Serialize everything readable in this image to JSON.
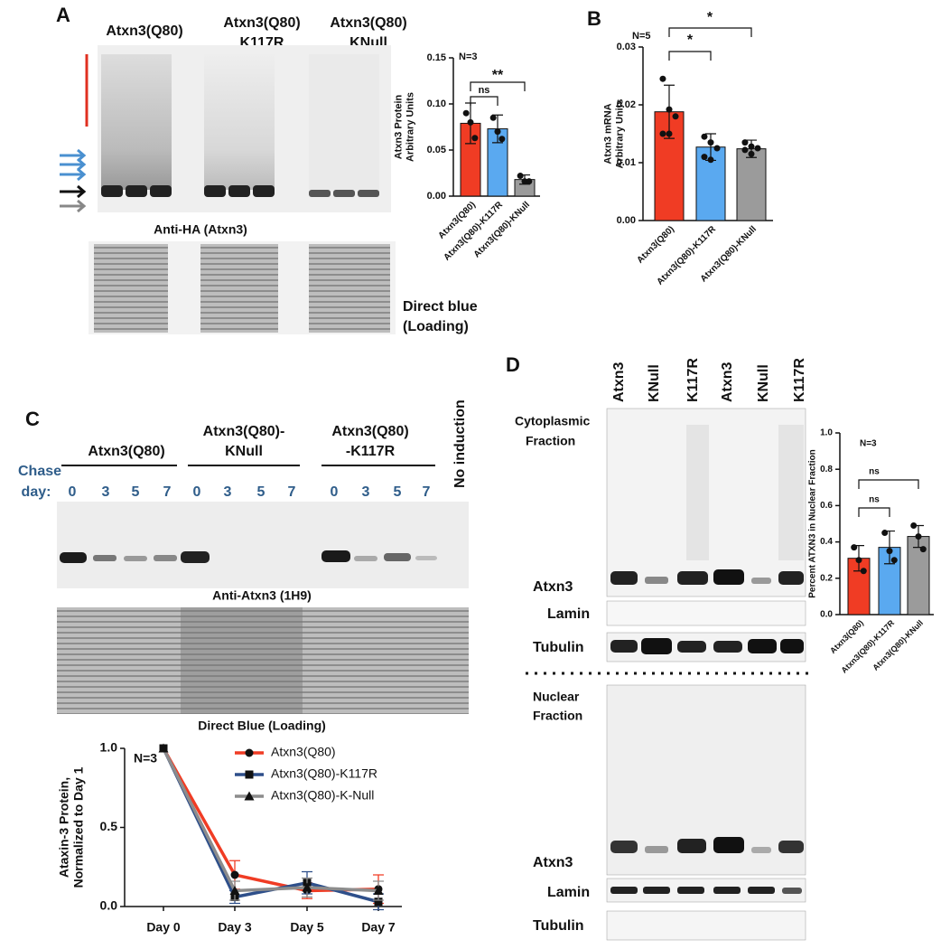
{
  "panel_a": {
    "label": "A",
    "lanes": [
      [
        "Atxn3(Q80)"
      ],
      [
        "Atxn3(Q80)",
        "K117R"
      ],
      [
        "Atxn3(Q80)",
        "KNull"
      ]
    ],
    "blot_label": "Anti-HA (Atxn3)",
    "loading_label": [
      "Direct blue",
      "(Loading)"
    ]
  },
  "panel_b": {
    "label": "B"
  },
  "panel_c": {
    "label": "C",
    "groups": [
      [
        "Atxn3(Q80)"
      ],
      [
        "Atxn3(Q80)-",
        "KNull"
      ],
      [
        "Atxn3(Q80)",
        "-K117R"
      ]
    ],
    "no_induction": "No induction",
    "chase_label": [
      "Chase",
      "day:"
    ],
    "days": [
      "0",
      "3",
      "5",
      "7",
      "0",
      "3",
      "5",
      "7",
      "0",
      "3",
      "5",
      "7"
    ],
    "blot_label": "Anti-Atxn3 (1H9)",
    "loading_label": "Direct Blue (Loading)"
  },
  "panel_d": {
    "label": "D",
    "lanes": [
      "Atxn3",
      "KNull",
      "K117R",
      "Atxn3",
      "KNull",
      "K117R"
    ],
    "cyto_label": [
      "Cytoplasmic",
      "Fraction"
    ],
    "nuclear_label": [
      "Nuclear",
      "Fraction"
    ],
    "cyto_rows": [
      "Atxn3",
      "Lamin",
      "Tubulin"
    ],
    "nuclear_rows": [
      "Atxn3",
      "Lamin",
      "Tubulin"
    ]
  },
  "chart_data": [
    {
      "type": "bar",
      "categories": [
        "Atxn3(Q80)",
        "Atxn3(Q80)-K117R",
        "Atxn3(Q80)-KNull"
      ],
      "values": [
        0.079,
        0.073,
        0.018
      ],
      "errors": [
        0.022,
        0.015,
        0.005
      ],
      "points": [
        [
          0.09,
          0.08,
          0.063
        ],
        [
          0.085,
          0.07,
          0.062
        ],
        [
          0.022,
          0.016,
          0.016
        ]
      ],
      "colors": [
        "#f03c24",
        "#5aa9f0",
        "#9b9b9b"
      ],
      "ylim": [
        0,
        0.15
      ],
      "yticks": [
        {
          "value": 0,
          "label": "0.00"
        },
        {
          "value": 0.05,
          "label": "0.05"
        },
        {
          "value": 0.1,
          "label": "0.10"
        },
        {
          "value": 0.15,
          "label": "0.15"
        }
      ],
      "y_label": [
        "Atxn3 Protein",
        "Arbitrary Units"
      ],
      "annotations": [
        "N=3",
        "ns",
        "**"
      ]
    },
    {
      "type": "bar",
      "categories": [
        "Atxn3(Q80)",
        "Atxn3(Q80)-K117R",
        "Atxn3(Q80)-KNull"
      ],
      "values": [
        0.0188,
        0.0127,
        0.0124
      ],
      "errors": [
        0.0046,
        0.0023,
        0.0015
      ],
      "points": [
        [
          0.0245,
          0.0192,
          0.018,
          0.015,
          0.015
        ],
        [
          0.0145,
          0.0135,
          0.0125,
          0.011,
          0.0105
        ],
        [
          0.0135,
          0.0128,
          0.0125,
          0.0122,
          0.0115
        ]
      ],
      "colors": [
        "#f03c24",
        "#5aa9f0",
        "#9b9b9b"
      ],
      "ylim": [
        0,
        0.03
      ],
      "yticks": [
        {
          "value": 0,
          "label": "0.00"
        },
        {
          "value": 0.01,
          "label": "0.01"
        },
        {
          "value": 0.02,
          "label": "0.02"
        },
        {
          "value": 0.03,
          "label": "0.03"
        }
      ],
      "y_label": [
        "Atxn3 mRNA",
        "Arbitrary Units"
      ],
      "annotations": [
        "N=5",
        "*",
        "*"
      ]
    },
    {
      "type": "line",
      "categories": [
        "Day 0",
        "Day 3",
        "Day 5",
        "Day 7"
      ],
      "series": [
        {
          "name": "Atxn3(Q80)",
          "color": "#f03c24",
          "marker": "circle",
          "values": [
            1,
            0.2,
            0.1,
            0.11
          ],
          "errors": [
            0,
            0.09,
            0.05,
            0.09
          ]
        },
        {
          "name": "Atxn3(Q80)-K117R",
          "color": "#2e4f8a",
          "marker": "square",
          "values": [
            1,
            0.06,
            0.15,
            0.03
          ],
          "errors": [
            0,
            0.04,
            0.07,
            0.05
          ]
        },
        {
          "name": "Atxn3(Q80)-K-Null",
          "color": "#8c8c8c",
          "marker": "triangle",
          "values": [
            1,
            0.1,
            0.12,
            0.1
          ],
          "errors": [
            0,
            0.06,
            0.06,
            0.06
          ]
        }
      ],
      "ylim": [
        0,
        1
      ],
      "yticks": [
        {
          "value": 0,
          "label": "0.0"
        },
        {
          "value": 0.5,
          "label": "0.5"
        },
        {
          "value": 1,
          "label": "1.0"
        }
      ],
      "y_label": [
        "Ataxin-3 Protein,",
        "Normalized to Day 1"
      ],
      "annotations": [
        "N=3"
      ],
      "legend": "upper right"
    },
    {
      "type": "bar",
      "categories": [
        "Atxn3(Q80)",
        "Atxn3(Q80)-K117R",
        "Atxn3(Q80)-KNull"
      ],
      "values": [
        0.31,
        0.37,
        0.43
      ],
      "errors": [
        0.07,
        0.09,
        0.06
      ],
      "points": [
        [
          0.37,
          0.3,
          0.24
        ],
        [
          0.45,
          0.35,
          0.3
        ],
        [
          0.49,
          0.43,
          0.36
        ]
      ],
      "colors": [
        "#f03c24",
        "#5aa9f0",
        "#9b9b9b"
      ],
      "ylim": [
        0,
        1
      ],
      "yticks": [
        {
          "value": 0,
          "label": "0.0"
        },
        {
          "value": 0.2,
          "label": "0.2"
        },
        {
          "value": 0.4,
          "label": "0.4"
        },
        {
          "value": 0.6,
          "label": "0.6"
        },
        {
          "value": 0.8,
          "label": "0.8"
        },
        {
          "value": 1,
          "label": "1.0"
        }
      ],
      "y_label": [
        "Percent ATXN3 in Nuclear Fraction"
      ],
      "annotations": [
        "N=3",
        "ns",
        "ns"
      ]
    }
  ]
}
